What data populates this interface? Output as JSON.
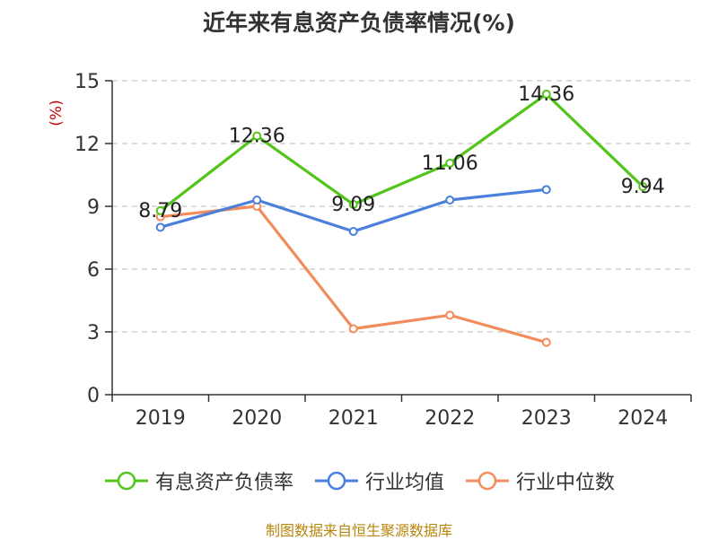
{
  "title": "近年来有息资产负债率情况(%)",
  "source": "制图数据来自恒生聚源数据库",
  "colors": {
    "company": "#52c41a",
    "industry_avg": "#4a7fdc",
    "industry_median": "#f28c5c",
    "ylabel": "#cc0000",
    "source": "#b8860b",
    "grid": "#c8c8c8",
    "axis": "#333333"
  },
  "chart_data": {
    "type": "line",
    "title": "近年来有息资产负债率情况(%)",
    "xlabel": "",
    "ylabel": "(%)",
    "categories": [
      "2019",
      "2020",
      "2021",
      "2022",
      "2023",
      "2024"
    ],
    "ylim": [
      0,
      15
    ],
    "yticks": [
      0,
      3,
      6,
      9,
      12,
      15
    ],
    "grid": true,
    "legend_position": "bottom",
    "series": [
      {
        "name": "有息资产负债率",
        "color": "#52c41a",
        "values": [
          8.79,
          12.36,
          9.09,
          11.06,
          14.36,
          9.94
        ],
        "labels": [
          "8.79",
          "12.36",
          "9.09",
          "11.06",
          "14.36",
          "9.94"
        ]
      },
      {
        "name": "行业均值",
        "color": "#4a7fdc",
        "values": [
          8.0,
          9.3,
          7.8,
          9.3,
          9.8,
          null
        ]
      },
      {
        "name": "行业中位数",
        "color": "#f28c5c",
        "values": [
          8.5,
          9.0,
          3.15,
          3.8,
          2.5,
          null
        ]
      }
    ]
  }
}
